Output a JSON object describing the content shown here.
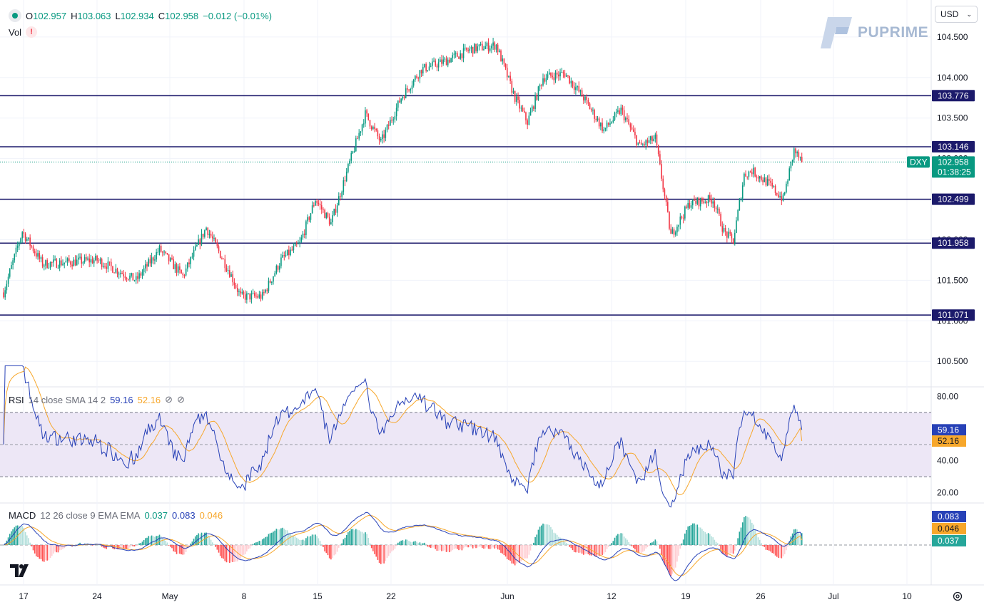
{
  "header": {
    "o_label": "O",
    "o_value": "102.957",
    "h_label": "H",
    "h_value": "103.063",
    "l_label": "L",
    "l_value": "102.934",
    "c_label": "C",
    "c_value": "102.958",
    "change": "−0.012 (−0.01%)",
    "vol_label": "Vol",
    "currency": "USD",
    "logo_text": "PUPRIME"
  },
  "indicators": {
    "rsi": {
      "label": "RSI",
      "params": "14 close SMA 14 2",
      "value": "59.16",
      "sma_value": "52.16",
      "sma_ref": "52.16",
      "eye1": "⊘",
      "eye2": "⊘"
    },
    "macd": {
      "label": "MACD",
      "params": "12 26 close 9 EMA EMA",
      "hist": "0.037",
      "macd": "0.083",
      "signal": "0.046"
    }
  },
  "colors": {
    "up": "#089981",
    "down": "#f23645",
    "level": "#1c1a6b",
    "rsi_line": "#2741b7",
    "rsi_sma": "#f7a72b",
    "rsi_band": "#ede7f6",
    "macd_line": "#2741b7",
    "signal_line": "#f7a72b",
    "price_badge": "#089981"
  },
  "chart_data": [
    {
      "type": "candlestick",
      "title": "DXY",
      "symbol": "DXY",
      "last_price": "102.958",
      "countdown": "01:38:25",
      "ylim": [
        100.3,
        104.85
      ],
      "y_ticks": [
        "100.500",
        "101.000",
        "101.500",
        "102.000",
        "102.500",
        "103.000",
        "103.500",
        "104.000",
        "104.500"
      ],
      "x_tick_labels": [
        "17",
        "24",
        "May",
        "8",
        "15",
        "22",
        "Jun",
        "12",
        "19",
        "26",
        "Jul",
        "10"
      ],
      "horizontal_levels": [
        "103.776",
        "103.146",
        "102.499",
        "101.958",
        "101.071"
      ],
      "path_anchors": [
        {
          "i": 0,
          "v": 101.35
        },
        {
          "i": 12,
          "v": 102.1
        },
        {
          "i": 25,
          "v": 101.7
        },
        {
          "i": 60,
          "v": 101.75
        },
        {
          "i": 85,
          "v": 101.5
        },
        {
          "i": 100,
          "v": 101.88
        },
        {
          "i": 115,
          "v": 101.55
        },
        {
          "i": 130,
          "v": 102.15
        },
        {
          "i": 145,
          "v": 101.6
        },
        {
          "i": 152,
          "v": 101.3
        },
        {
          "i": 166,
          "v": 101.3
        },
        {
          "i": 178,
          "v": 101.75
        },
        {
          "i": 190,
          "v": 101.95
        },
        {
          "i": 200,
          "v": 102.5
        },
        {
          "i": 210,
          "v": 102.2
        },
        {
          "i": 222,
          "v": 102.95
        },
        {
          "i": 232,
          "v": 103.55
        },
        {
          "i": 242,
          "v": 103.2
        },
        {
          "i": 255,
          "v": 103.75
        },
        {
          "i": 268,
          "v": 104.1
        },
        {
          "i": 283,
          "v": 104.2
        },
        {
          "i": 300,
          "v": 104.35
        },
        {
          "i": 316,
          "v": 104.4
        },
        {
          "i": 328,
          "v": 103.75
        },
        {
          "i": 336,
          "v": 103.45
        },
        {
          "i": 346,
          "v": 104.0
        },
        {
          "i": 360,
          "v": 104.05
        },
        {
          "i": 372,
          "v": 103.75
        },
        {
          "i": 385,
          "v": 103.35
        },
        {
          "i": 396,
          "v": 103.6
        },
        {
          "i": 408,
          "v": 103.15
        },
        {
          "i": 418,
          "v": 103.25
        },
        {
          "i": 428,
          "v": 102.05
        },
        {
          "i": 440,
          "v": 102.45
        },
        {
          "i": 455,
          "v": 102.5
        },
        {
          "i": 462,
          "v": 102.1
        },
        {
          "i": 468,
          "v": 101.98
        },
        {
          "i": 475,
          "v": 102.8
        },
        {
          "i": 480,
          "v": 102.85
        },
        {
          "i": 490,
          "v": 102.7
        },
        {
          "i": 500,
          "v": 102.5
        },
        {
          "i": 507,
          "v": 103.1
        },
        {
          "i": 512,
          "v": 102.96
        }
      ]
    },
    {
      "type": "line",
      "title": "RSI",
      "ylim": [
        15,
        85
      ],
      "y_ticks": [
        "20.00",
        "40.00",
        "60.00",
        "80.00"
      ],
      "band": [
        30,
        70
      ],
      "midline": 50,
      "last_rsi": 59.16,
      "last_sma": 52.16
    },
    {
      "type": "bar",
      "title": "MACD",
      "last_hist": 0.037,
      "last_macd": 0.083,
      "last_signal": 0.046
    }
  ]
}
